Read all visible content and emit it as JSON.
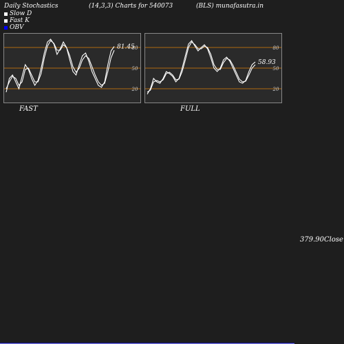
{
  "header": {
    "title": "Daily Stochastics",
    "params": "(14,3,3) Charts for 540073",
    "symbol": "(BLS) munafasutra.in"
  },
  "legend": [
    {
      "label": "Slow  D",
      "color": "#ffffff"
    },
    {
      "label": "Fast K",
      "color": "#ffffff"
    },
    {
      "label": "OBV",
      "color": "#0000ff"
    }
  ],
  "colors": {
    "background": "#1e1e1e",
    "panel_bg": "#2a2a2a",
    "level_line": "#b06a10",
    "stoch_line": "#ffffff",
    "obv_line": "#0000cc",
    "close_line": "#ffffff"
  },
  "chart_data": [
    {
      "type": "line",
      "panel_label": "FAST",
      "ylim": [
        0,
        100
      ],
      "levels": [
        20,
        50,
        80
      ],
      "level_labels": [
        "20",
        "50",
        "80"
      ],
      "last_value_label": "81.45",
      "series": [
        {
          "values": [
            15,
            35,
            40,
            30,
            20,
            38,
            55,
            48,
            35,
            25,
            32,
            50,
            72,
            88,
            92,
            85,
            70,
            78,
            88,
            80,
            62,
            45,
            40,
            55,
            68,
            72,
            60,
            45,
            35,
            25,
            22,
            30,
            55,
            75,
            81.45
          ]
        },
        {
          "values": [
            20,
            30,
            38,
            35,
            25,
            30,
            48,
            50,
            40,
            30,
            30,
            42,
            65,
            82,
            90,
            86,
            76,
            76,
            84,
            80,
            68,
            52,
            44,
            50,
            62,
            68,
            64,
            52,
            40,
            30,
            25,
            28,
            45,
            65,
            76
          ]
        }
      ]
    },
    {
      "type": "line",
      "panel_label": "FULL",
      "ylim": [
        0,
        100
      ],
      "levels": [
        20,
        50,
        80
      ],
      "level_labels": [
        "20",
        "50",
        "80"
      ],
      "last_value_label": "58.93",
      "series": [
        {
          "values": [
            12,
            20,
            35,
            30,
            28,
            35,
            45,
            42,
            38,
            30,
            35,
            50,
            68,
            85,
            90,
            82,
            75,
            80,
            84,
            78,
            65,
            50,
            45,
            50,
            62,
            66,
            60,
            50,
            40,
            30,
            28,
            32,
            45,
            55,
            58.93
          ]
        },
        {
          "values": [
            15,
            18,
            30,
            32,
            30,
            33,
            42,
            44,
            40,
            33,
            34,
            45,
            62,
            80,
            88,
            84,
            78,
            78,
            82,
            80,
            70,
            55,
            48,
            48,
            58,
            64,
            62,
            54,
            44,
            34,
            30,
            31,
            40,
            50,
            55
          ]
        }
      ]
    },
    {
      "type": "line",
      "ylim": [
        0,
        100
      ],
      "close_label": "379.90",
      "close_suffix": "Close",
      "series": [
        {
          "name": "OBV",
          "values": [
            null,
            null,
            null,
            null,
            null,
            null,
            null,
            null,
            null,
            null,
            null,
            null,
            null,
            null,
            null,
            null,
            null,
            null,
            null,
            null,
            null,
            null,
            null,
            null,
            null,
            null,
            null,
            null,
            null,
            null,
            null,
            null,
            null,
            null,
            null,
            null,
            null,
            null,
            null,
            null,
            null,
            null,
            null,
            null,
            null
          ]
        },
        {
          "name": "Close",
          "values": [
            null,
            null,
            null,
            null,
            null,
            null,
            null,
            null,
            null,
            null,
            null,
            null,
            null,
            null,
            null,
            null,
            null,
            null,
            null,
            null,
            null,
            null,
            null,
            null,
            null,
            null,
            null,
            null,
            null,
            null,
            null,
            null,
            null,
            null,
            null,
            null,
            null,
            null,
            null,
            null,
            null,
            null,
            null,
            null,
            null
          ]
        }
      ]
    }
  ]
}
